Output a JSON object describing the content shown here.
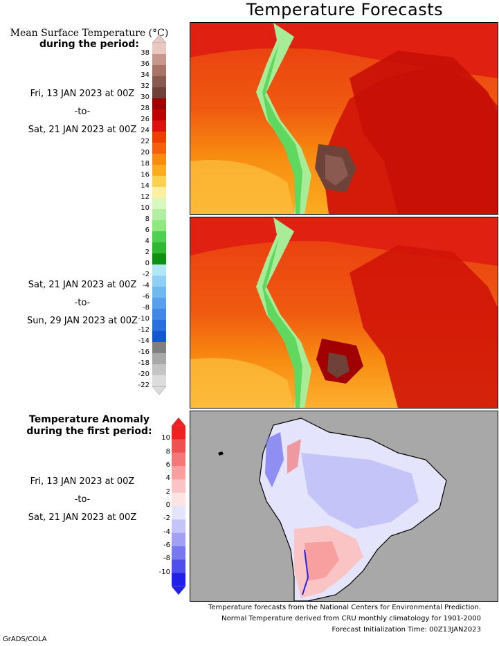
{
  "title": "Temperature Forecasts",
  "mean_header": {
    "line1": "Mean Surface Temperature (°C)",
    "line2": "during the period:"
  },
  "period1": {
    "start": "Fri, 13 JAN 2023 at 00Z",
    "sep": "-to-",
    "end": "Sat, 21 JAN 2023 at 00Z"
  },
  "period2": {
    "start": "Sat, 21 JAN 2023 at 00Z",
    "sep": "-to-",
    "end": "Sun, 29 JAN 2023 at 00Z"
  },
  "anomaly_header": {
    "line1": "Temperature Anomaly",
    "line2": "during the first period:"
  },
  "period3": {
    "start": "Fri, 13 JAN 2023 at 00Z",
    "sep": "-to-",
    "end": "Sat, 21 JAN 2023 at 00Z"
  },
  "temp_scale": {
    "ticks": [
      "38",
      "36",
      "34",
      "32",
      "30",
      "28",
      "26",
      "24",
      "22",
      "20",
      "18",
      "16",
      "14",
      "12",
      "10",
      "8",
      "6",
      "4",
      "2",
      "0",
      "-2",
      "-4",
      "-6",
      "-8",
      "-10",
      "-12",
      "-14",
      "-16",
      "-18",
      "-20",
      "-22"
    ],
    "colors": [
      "#e8c8c0",
      "#c8968a",
      "#a87468",
      "#8a5a50",
      "#6e4238",
      "#a00000",
      "#c00000",
      "#e01010",
      "#f03c00",
      "#f46010",
      "#f88c10",
      "#fcac20",
      "#fcd050",
      "#fcf0a0",
      "#d8f8c0",
      "#b0f0a0",
      "#90e880",
      "#50d050",
      "#30b830",
      "#109010",
      "#b0e8f8",
      "#90d0f4",
      "#70b8f0",
      "#58a0ec",
      "#4088e4",
      "#2870dc",
      "#1458d0",
      "#808080",
      "#a8a8a8",
      "#c4c4c4",
      "#dcdcdc"
    ]
  },
  "anom_scale": {
    "ticks": [
      "10",
      "8",
      "6",
      "4",
      "2",
      "0",
      "-2",
      "-4",
      "-6",
      "-8",
      "-10"
    ],
    "colors": [
      "#ee2020",
      "#f05050",
      "#f47878",
      "#f8a0a0",
      "#fbc4c4",
      "#fde4e4",
      "#e4e4fc",
      "#c4c4f8",
      "#a0a0f4",
      "#7878f0",
      "#5050ec",
      "#2020e8"
    ]
  },
  "footer": {
    "line1": "Temperature forecasts from the National Centers for Environmental Prediction.",
    "line2": "Normal Temperature derived from CRU monthly climatology for 1901-2000",
    "line3": "Forecast Initialization Time: 00Z13JAN2023"
  },
  "credit": "GrADS/COLA"
}
